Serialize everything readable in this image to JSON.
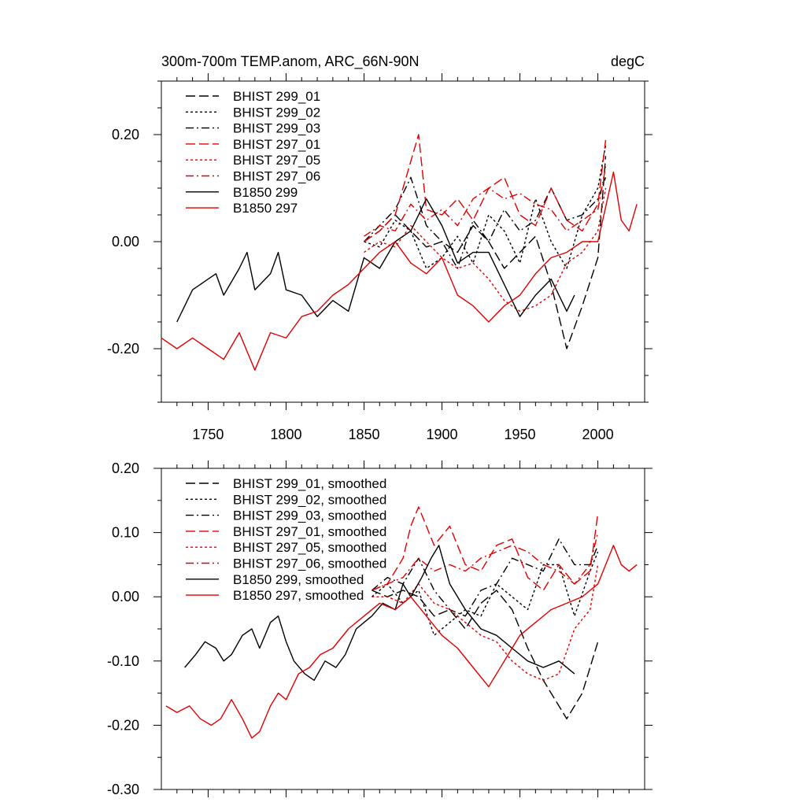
{
  "chart_data": [
    {
      "type": "line",
      "title": "300m-700m TEMP.anom, ARC_66N-90N",
      "units": "degC",
      "xlim": [
        1720,
        2030
      ],
      "ylim": [
        -0.3,
        0.3
      ],
      "x_ticks": [
        1750,
        1800,
        1850,
        1900,
        1950,
        2000
      ],
      "y_ticks": [
        -0.2,
        0.0,
        0.2
      ],
      "y_tick_labels": [
        "-0.20",
        "0.00",
        "0.20"
      ],
      "legend_position": "top-left",
      "series": [
        {
          "name": "BHIST 299_01",
          "color": "#000000",
          "dash": "dash",
          "x": [
            1850,
            1860,
            1870,
            1880,
            1890,
            1900,
            1910,
            1920,
            1930,
            1940,
            1950,
            1960,
            1970,
            1975,
            1980,
            1990,
            2000,
            2005
          ],
          "y": [
            0.0,
            0.02,
            0.05,
            0.02,
            -0.01,
            0.0,
            -0.02,
            0.03,
            0.0,
            -0.05,
            -0.02,
            0.01,
            -0.08,
            -0.14,
            -0.2,
            -0.12,
            -0.03,
            0.16
          ]
        },
        {
          "name": "BHIST 299_02",
          "color": "#000000",
          "dash": "dot",
          "x": [
            1850,
            1860,
            1870,
            1880,
            1890,
            1900,
            1910,
            1920,
            1930,
            1940,
            1950,
            1960,
            1970,
            1980,
            1990,
            2000,
            2005
          ],
          "y": [
            0.0,
            -0.01,
            0.04,
            0.02,
            -0.05,
            -0.03,
            0.01,
            -0.04,
            0.05,
            0.02,
            -0.04,
            0.08,
            0.0,
            -0.05,
            0.05,
            0.1,
            0.18
          ]
        },
        {
          "name": "BHIST 299_03",
          "color": "#000000",
          "dash": "dashdot",
          "x": [
            1850,
            1860,
            1870,
            1880,
            1890,
            1900,
            1910,
            1920,
            1930,
            1940,
            1950,
            1960,
            1970,
            1980,
            1990,
            2000,
            2005
          ],
          "y": [
            0.0,
            0.03,
            0.06,
            0.12,
            0.03,
            0.0,
            -0.05,
            0.04,
            0.0,
            0.06,
            0.02,
            0.04,
            0.1,
            0.04,
            0.05,
            0.08,
            0.12
          ]
        },
        {
          "name": "BHIST 297_01",
          "color": "#e00000",
          "dash": "dash",
          "x": [
            1850,
            1860,
            1870,
            1880,
            1885,
            1890,
            1900,
            1910,
            1920,
            1930,
            1940,
            1950,
            1960,
            1970,
            1980,
            1990,
            2000,
            2005
          ],
          "y": [
            0.0,
            0.02,
            0.05,
            0.15,
            0.2,
            0.06,
            0.05,
            0.08,
            0.04,
            0.1,
            0.12,
            0.05,
            0.03,
            0.1,
            0.04,
            0.02,
            0.07,
            0.19
          ]
        },
        {
          "name": "BHIST 297_05",
          "color": "#e00000",
          "dash": "dot",
          "x": [
            1850,
            1860,
            1870,
            1880,
            1890,
            1900,
            1910,
            1920,
            1930,
            1940,
            1950,
            1960,
            1970,
            1980,
            1990,
            2000,
            2005
          ],
          "y": [
            -0.02,
            0.0,
            -0.01,
            0.03,
            0.0,
            -0.03,
            -0.05,
            -0.04,
            -0.07,
            -0.11,
            -0.13,
            -0.12,
            -0.1,
            -0.04,
            -0.02,
            0.02,
            0.1
          ]
        },
        {
          "name": "BHIST 297_06",
          "color": "#e00000",
          "dash": "dashdot",
          "x": [
            1850,
            1860,
            1870,
            1880,
            1890,
            1900,
            1910,
            1920,
            1930,
            1940,
            1950,
            1960,
            1970,
            1980,
            1990,
            2000,
            2005
          ],
          "y": [
            0.01,
            0.03,
            0.02,
            0.07,
            0.04,
            0.06,
            0.03,
            0.08,
            0.1,
            0.08,
            0.09,
            0.07,
            0.06,
            0.02,
            0.04,
            0.06,
            0.14
          ]
        },
        {
          "name": "B1850 299",
          "color": "#000000",
          "dash": "solid",
          "x": [
            1730,
            1740,
            1750,
            1755,
            1760,
            1770,
            1775,
            1780,
            1790,
            1795,
            1800,
            1810,
            1820,
            1830,
            1840,
            1850,
            1860,
            1870,
            1880,
            1890,
            1900,
            1910,
            1920,
            1930,
            1940,
            1950,
            1960,
            1970,
            1980,
            1985
          ],
          "y": [
            -0.15,
            -0.09,
            -0.07,
            -0.06,
            -0.1,
            -0.05,
            -0.02,
            -0.09,
            -0.06,
            -0.02,
            -0.09,
            -0.1,
            -0.14,
            -0.11,
            -0.13,
            -0.03,
            -0.05,
            0.0,
            0.02,
            0.08,
            0.03,
            -0.04,
            -0.02,
            -0.02,
            -0.08,
            -0.14,
            -0.1,
            -0.07,
            -0.13,
            -0.1
          ]
        },
        {
          "name": "B1850 297",
          "color": "#e00000",
          "dash": "solid",
          "x": [
            1720,
            1730,
            1740,
            1750,
            1760,
            1770,
            1780,
            1790,
            1800,
            1810,
            1820,
            1830,
            1840,
            1850,
            1860,
            1870,
            1880,
            1890,
            1900,
            1910,
            1920,
            1930,
            1940,
            1950,
            1960,
            1970,
            1980,
            1990,
            2000,
            2010,
            2015,
            2020,
            2025
          ],
          "y": [
            -0.18,
            -0.2,
            -0.18,
            -0.2,
            -0.22,
            -0.17,
            -0.24,
            -0.17,
            -0.18,
            -0.14,
            -0.13,
            -0.1,
            -0.08,
            -0.05,
            -0.02,
            0.0,
            -0.04,
            -0.06,
            -0.03,
            -0.1,
            -0.12,
            -0.15,
            -0.12,
            -0.1,
            -0.06,
            -0.03,
            -0.02,
            0.0,
            0.0,
            0.13,
            0.04,
            0.02,
            0.07
          ]
        }
      ]
    },
    {
      "type": "line",
      "title": "",
      "xlim": [
        1720,
        2030
      ],
      "ylim": [
        -0.3,
        0.2
      ],
      "y_ticks": [
        -0.3,
        -0.2,
        -0.1,
        0.0,
        0.1,
        0.2
      ],
      "y_tick_labels": [
        "-0.30",
        "-0.20",
        "-0.10",
        "0.00",
        "0.10",
        "0.20"
      ],
      "legend_position": "top-left",
      "series": [
        {
          "name": "BHIST 299_01, smoothed",
          "color": "#000000",
          "dash": "dash",
          "x": [
            1855,
            1865,
            1875,
            1885,
            1895,
            1905,
            1915,
            1925,
            1935,
            1945,
            1955,
            1965,
            1975,
            1980,
            1990,
            2000
          ],
          "y": [
            0.01,
            0.0,
            0.01,
            0.0,
            -0.03,
            -0.02,
            -0.05,
            -0.01,
            0.01,
            -0.02,
            -0.08,
            -0.13,
            -0.17,
            -0.19,
            -0.15,
            -0.07
          ]
        },
        {
          "name": "BHIST 299_02, smoothed",
          "color": "#000000",
          "dash": "dot",
          "x": [
            1855,
            1865,
            1875,
            1885,
            1895,
            1905,
            1915,
            1925,
            1935,
            1945,
            1955,
            1965,
            1975,
            1985,
            1995,
            2000
          ],
          "y": [
            0.0,
            0.02,
            -0.01,
            0.01,
            -0.06,
            -0.04,
            -0.02,
            -0.03,
            0.02,
            0.0,
            -0.02,
            0.05,
            0.05,
            -0.03,
            0.04,
            0.07
          ]
        },
        {
          "name": "BHIST 299_03, smoothed",
          "color": "#000000",
          "dash": "dashdot",
          "x": [
            1855,
            1865,
            1875,
            1885,
            1895,
            1905,
            1915,
            1925,
            1935,
            1945,
            1955,
            1965,
            1975,
            1985,
            1995,
            2000
          ],
          "y": [
            0.01,
            0.03,
            0.02,
            0.06,
            0.01,
            -0.02,
            -0.03,
            0.01,
            0.02,
            0.06,
            0.05,
            0.04,
            0.09,
            0.05,
            0.05,
            0.08
          ]
        },
        {
          "name": "BHIST 297_01, smoothed",
          "color": "#e00000",
          "dash": "dash",
          "x": [
            1855,
            1865,
            1875,
            1880,
            1885,
            1895,
            1905,
            1915,
            1925,
            1935,
            1945,
            1955,
            1965,
            1975,
            1985,
            1995,
            2000
          ],
          "y": [
            0.01,
            0.02,
            0.06,
            0.11,
            0.14,
            0.08,
            0.11,
            0.05,
            0.04,
            0.08,
            0.09,
            0.03,
            0.01,
            0.05,
            0.02,
            0.04,
            0.13
          ]
        },
        {
          "name": "BHIST 297_05, smoothed",
          "color": "#e00000",
          "dash": "dot",
          "x": [
            1855,
            1865,
            1875,
            1885,
            1895,
            1905,
            1915,
            1925,
            1935,
            1945,
            1955,
            1965,
            1975,
            1985,
            1995,
            2000
          ],
          "y": [
            0.0,
            0.0,
            -0.01,
            0.02,
            -0.01,
            -0.02,
            -0.04,
            -0.06,
            -0.07,
            -0.1,
            -0.12,
            -0.13,
            -0.12,
            -0.05,
            -0.02,
            0.05
          ]
        },
        {
          "name": "BHIST 297_06, smoothed",
          "color": "#e00000",
          "dash": "dashdot",
          "x": [
            1855,
            1865,
            1875,
            1885,
            1895,
            1905,
            1915,
            1925,
            1935,
            1945,
            1955,
            1965,
            1975,
            1985,
            1995,
            2000
          ],
          "y": [
            0.01,
            0.02,
            0.03,
            0.06,
            0.04,
            0.05,
            0.04,
            0.06,
            0.07,
            0.08,
            0.07,
            0.05,
            0.04,
            0.02,
            0.05,
            0.1
          ]
        },
        {
          "name": "B1850 299, smoothed",
          "color": "#000000",
          "dash": "solid",
          "x": [
            1735,
            1742,
            1748,
            1755,
            1760,
            1765,
            1772,
            1778,
            1783,
            1790,
            1795,
            1800,
            1805,
            1812,
            1818,
            1825,
            1832,
            1838,
            1845,
            1850,
            1855,
            1862,
            1870,
            1875,
            1880,
            1887,
            1893,
            1898,
            1905,
            1915,
            1925,
            1935,
            1945,
            1955,
            1965,
            1975,
            1985
          ],
          "y": [
            -0.11,
            -0.09,
            -0.07,
            -0.08,
            -0.1,
            -0.09,
            -0.06,
            -0.05,
            -0.08,
            -0.04,
            -0.03,
            -0.07,
            -0.1,
            -0.12,
            -0.13,
            -0.1,
            -0.11,
            -0.09,
            -0.05,
            -0.04,
            -0.03,
            -0.01,
            -0.02,
            0.02,
            0.0,
            0.03,
            0.06,
            0.08,
            0.02,
            -0.02,
            -0.05,
            -0.06,
            -0.08,
            -0.1,
            -0.11,
            -0.1,
            -0.12
          ]
        },
        {
          "name": "B1850 297, smoothed",
          "color": "#e00000",
          "dash": "solid",
          "x": [
            1723,
            1730,
            1738,
            1745,
            1752,
            1758,
            1765,
            1772,
            1778,
            1783,
            1790,
            1795,
            1800,
            1808,
            1815,
            1822,
            1830,
            1840,
            1850,
            1860,
            1870,
            1880,
            1890,
            1900,
            1910,
            1920,
            1930,
            1940,
            1950,
            1960,
            1970,
            1980,
            1990,
            2000,
            2010,
            2015,
            2020,
            2025
          ],
          "y": [
            -0.17,
            -0.18,
            -0.17,
            -0.19,
            -0.2,
            -0.19,
            -0.16,
            -0.19,
            -0.22,
            -0.21,
            -0.17,
            -0.15,
            -0.16,
            -0.12,
            -0.11,
            -0.09,
            -0.08,
            -0.05,
            -0.03,
            -0.01,
            -0.02,
            0.0,
            -0.03,
            -0.06,
            -0.08,
            -0.11,
            -0.14,
            -0.1,
            -0.06,
            -0.04,
            -0.02,
            -0.01,
            0.0,
            0.02,
            0.08,
            0.05,
            0.04,
            0.05
          ]
        }
      ]
    }
  ]
}
